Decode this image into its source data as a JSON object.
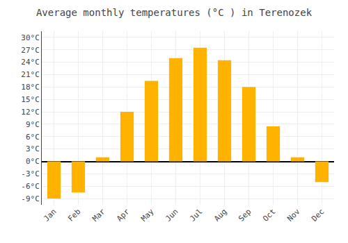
{
  "chart_data": {
    "type": "bar",
    "title": "Average monthly temperatures (°C ) in Terenozek",
    "categories": [
      "Jan",
      "Feb",
      "Mar",
      "Apr",
      "May",
      "Jun",
      "Jul",
      "Aug",
      "Sep",
      "Oct",
      "Nov",
      "Dec"
    ],
    "values": [
      -9,
      -7.5,
      1,
      12,
      19.5,
      25,
      27.5,
      24.5,
      18,
      8.5,
      1,
      -5
    ],
    "color": "#FFB300",
    "ylim": [
      -10.5,
      31.5
    ],
    "yticks": [
      {
        "value": -9,
        "label": "-9°C"
      },
      {
        "value": -6,
        "label": "-6°C"
      },
      {
        "value": -3,
        "label": "-3°C"
      },
      {
        "value": 0,
        "label": "0°C"
      },
      {
        "value": 3,
        "label": "3°C"
      },
      {
        "value": 6,
        "label": "6°C"
      },
      {
        "value": 9,
        "label": "9°C"
      },
      {
        "value": 12,
        "label": "12°C"
      },
      {
        "value": 15,
        "label": "15°C"
      },
      {
        "value": 18,
        "label": "18°C"
      },
      {
        "value": 21,
        "label": "21°C"
      },
      {
        "value": 24,
        "label": "24°C"
      },
      {
        "value": 27,
        "label": "27°C"
      },
      {
        "value": 30,
        "label": "30°C"
      }
    ],
    "grid": true
  }
}
